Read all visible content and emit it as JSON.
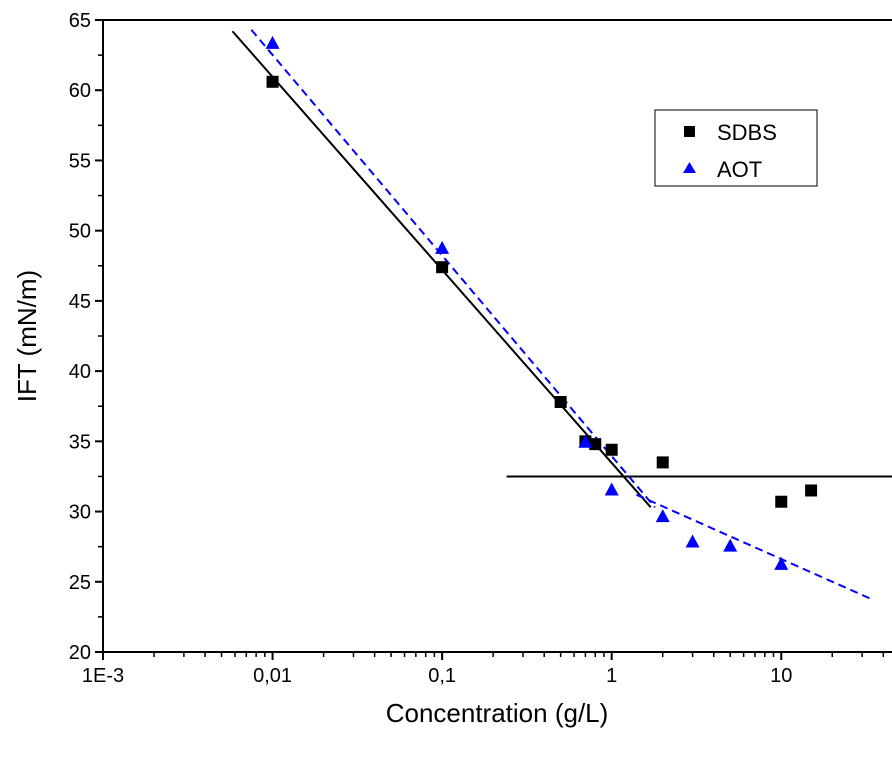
{
  "chart_data": {
    "type": "scatter",
    "title": "",
    "xlabel": "Concentration (g/L)",
    "ylabel": "IFT (mN/m)",
    "xscale": "log",
    "xlim": [
      0.001,
      45
    ],
    "ylim": [
      20,
      65
    ],
    "xticks": [
      0.001,
      0.01,
      0.1,
      1,
      10
    ],
    "xtick_labels": [
      "1E-3",
      "0,01",
      "0,1",
      "1",
      "10"
    ],
    "yticks": [
      20,
      25,
      30,
      35,
      40,
      45,
      50,
      55,
      60,
      65
    ],
    "ytick_labels": [
      "20",
      "25",
      "30",
      "35",
      "40",
      "45",
      "50",
      "55",
      "60",
      "65"
    ],
    "grid": false,
    "legend_position": "top-right",
    "series": [
      {
        "name": "SDBS",
        "marker": "square",
        "color": "#000000",
        "x": [
          0.01,
          0.1,
          0.5,
          0.7,
          0.8,
          1,
          2,
          10,
          15
        ],
        "y": [
          60.6,
          47.4,
          37.8,
          35.0,
          34.8,
          34.4,
          33.5,
          30.7,
          31.5
        ]
      },
      {
        "name": "AOT",
        "marker": "triangle",
        "color": "#0000ff",
        "x": [
          0.01,
          0.1,
          0.7,
          1,
          2,
          3,
          5,
          10
        ],
        "y": [
          63.3,
          48.7,
          34.9,
          31.5,
          29.6,
          27.8,
          27.5,
          26.2
        ]
      }
    ],
    "fit_lines": [
      {
        "color": "#000000",
        "dash": false,
        "x": [
          0.0058,
          1.7
        ],
        "y": [
          64.2,
          30.3
        ]
      },
      {
        "color": "#000000",
        "dash": false,
        "x": [
          0.24,
          45
        ],
        "y": [
          32.5,
          32.5
        ]
      },
      {
        "color": "#0000ff",
        "dash": true,
        "x": [
          0.0075,
          1.8
        ],
        "y": [
          64.3,
          30.3
        ]
      },
      {
        "color": "#0000ff",
        "dash": true,
        "x": [
          1.4,
          35
        ],
        "y": [
          31.2,
          23.7
        ]
      }
    ]
  }
}
